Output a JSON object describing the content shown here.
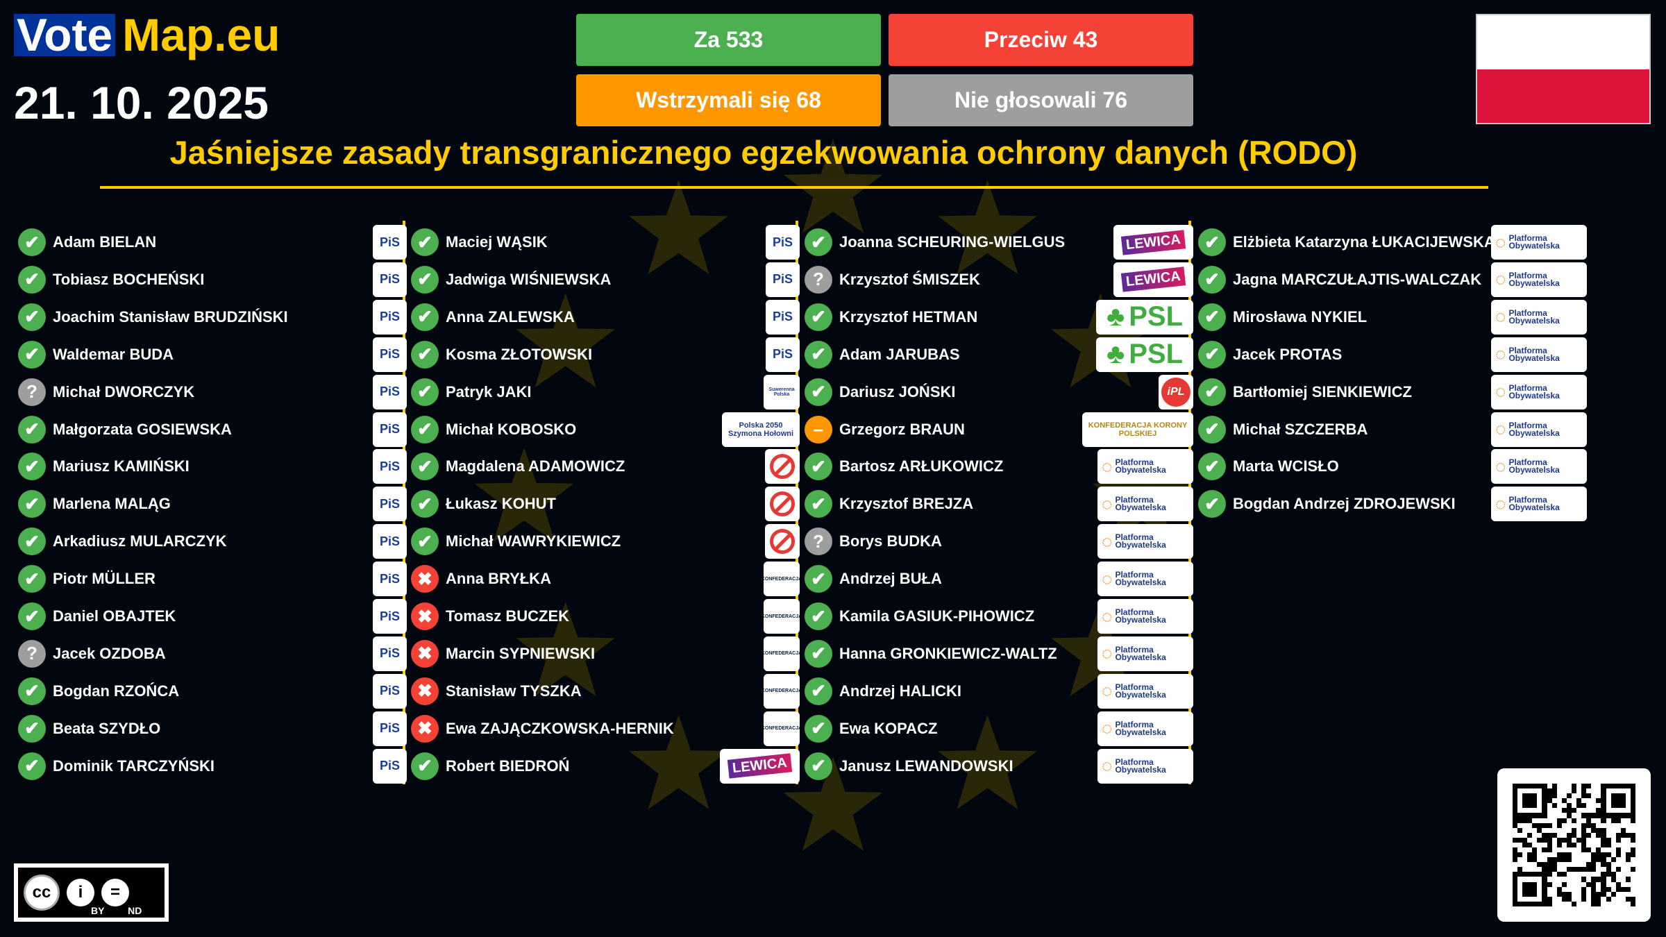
{
  "brand": {
    "vote": "Vote",
    "map": "Map.eu"
  },
  "date": "21. 10. 2025",
  "tally": {
    "for": "Za 533",
    "against": "Przeciw 43",
    "abstain": "Wstrzymali się 68",
    "absent": "Nie głosowali 76"
  },
  "title": "Jaśniejsze zasady transgranicznego egzekwowania ochrony danych (RODO)",
  "colors": {
    "for": "#4caf50",
    "against": "#f44336",
    "abstain": "#ff9800",
    "absent": "#9e9e9e",
    "accent": "#ffcc00",
    "background": "#02060f"
  },
  "vote_icons": {
    "for": "✔",
    "against": "✖",
    "abstain": "–",
    "absent": "?"
  },
  "parties": {
    "PIS": {
      "label": "PiS"
    },
    "LEW": {
      "label": "LEWICA"
    },
    "PSL": {
      "label": "PSL"
    },
    "PO": {
      "label": "Platforma Obywatelska"
    },
    "KON": {
      "label": "KONFEDERACJA"
    },
    "KKP": {
      "label": "KONFEDERACJA KORONY POLSKIEJ"
    },
    "P2050": {
      "label": "Polska 2050 Szymona Hołowni"
    },
    "IPL": {
      "label": "iPL"
    },
    "SP": {
      "label": "Suwerenna Polska"
    },
    "NI": {
      "label": "",
      "icon": "no-entry-icon"
    }
  },
  "columns": [
    [
      [
        "Adam BIELAN",
        "for",
        "PIS"
      ],
      [
        "Tobiasz BOCHEŃSKI",
        "for",
        "PIS"
      ],
      [
        "Joachim Stanisław BRUDZIŃSKI",
        "for",
        "PIS"
      ],
      [
        "Waldemar BUDA",
        "for",
        "PIS"
      ],
      [
        "Michał DWORCZYK",
        "absent",
        "PIS"
      ],
      [
        "Małgorzata GOSIEWSKA",
        "for",
        "PIS"
      ],
      [
        "Mariusz KAMIŃSKI",
        "for",
        "PIS"
      ],
      [
        "Marlena MALĄG",
        "for",
        "PIS"
      ],
      [
        "Arkadiusz MULARCZYK",
        "for",
        "PIS"
      ],
      [
        "Piotr MÜLLER",
        "for",
        "PIS"
      ],
      [
        "Daniel OBAJTEK",
        "for",
        "PIS"
      ],
      [
        "Jacek OZDOBA",
        "absent",
        "PIS"
      ],
      [
        "Bogdan RZOŃCA",
        "for",
        "PIS"
      ],
      [
        "Beata SZYDŁO",
        "for",
        "PIS"
      ],
      [
        "Dominik TARCZYŃSKI",
        "for",
        "PIS"
      ]
    ],
    [
      [
        "Maciej WĄSIK",
        "for",
        "PIS"
      ],
      [
        "Jadwiga WIŚNIEWSKA",
        "for",
        "PIS"
      ],
      [
        "Anna ZALEWSKA",
        "for",
        "PIS"
      ],
      [
        "Kosma ZŁOTOWSKI",
        "for",
        "PIS"
      ],
      [
        "Patryk JAKI",
        "for",
        "SP"
      ],
      [
        "Michał KOBOSKO",
        "for",
        "P2050"
      ],
      [
        "Magdalena ADAMOWICZ",
        "for",
        "NI"
      ],
      [
        "Łukasz KOHUT",
        "for",
        "NI"
      ],
      [
        "Michał WAWRYKIEWICZ",
        "for",
        "NI"
      ],
      [
        "Anna BRYŁKA",
        "against",
        "KON"
      ],
      [
        "Tomasz BUCZEK",
        "against",
        "KON"
      ],
      [
        "Marcin SYPNIEWSKI",
        "against",
        "KON"
      ],
      [
        "Stanisław TYSZKA",
        "against",
        "KON"
      ],
      [
        "Ewa ZAJĄCZKOWSKA-HERNIK",
        "against",
        "KON"
      ],
      [
        "Robert BIEDROŃ",
        "for",
        "LEW"
      ]
    ],
    [
      [
        "Joanna SCHEURING-WIELGUS",
        "for",
        "LEW"
      ],
      [
        "Krzysztof ŚMISZEK",
        "absent",
        "LEW"
      ],
      [
        "Krzysztof HETMAN",
        "for",
        "PSL"
      ],
      [
        "Adam JARUBAS",
        "for",
        "PSL"
      ],
      [
        "Dariusz JOŃSKI",
        "for",
        "IPL"
      ],
      [
        "Grzegorz BRAUN",
        "abstain",
        "KKP"
      ],
      [
        "Bartosz ARŁUKOWICZ",
        "for",
        "PO"
      ],
      [
        "Krzysztof BREJZA",
        "for",
        "PO"
      ],
      [
        "Borys BUDKA",
        "absent",
        "PO"
      ],
      [
        "Andrzej BUŁA",
        "for",
        "PO"
      ],
      [
        "Kamila GASIUK-PIHOWICZ",
        "for",
        "PO"
      ],
      [
        "Hanna GRONKIEWICZ-WALTZ",
        "for",
        "PO"
      ],
      [
        "Andrzej HALICKI",
        "for",
        "PO"
      ],
      [
        "Ewa KOPACZ",
        "for",
        "PO"
      ],
      [
        "Janusz LEWANDOWSKI",
        "for",
        "PO"
      ]
    ],
    [
      [
        "Elżbieta Katarzyna ŁUKACIJEWSKA",
        "for",
        "PO"
      ],
      [
        "Jagna MARCZUŁAJTIS-WALCZAK",
        "for",
        "PO"
      ],
      [
        "Mirosława NYKIEL",
        "for",
        "PO"
      ],
      [
        "Jacek PROTAS",
        "for",
        "PO"
      ],
      [
        "Bartłomiej SIENKIEWICZ",
        "for",
        "PO"
      ],
      [
        "Michał SZCZERBA",
        "for",
        "PO"
      ],
      [
        "Marta WCISŁO",
        "for",
        "PO"
      ],
      [
        "Bogdan Andrzej ZDROJEWSKI",
        "for",
        "PO"
      ]
    ]
  ],
  "license": {
    "cc": "cc",
    "by": "BY",
    "nd": "ND"
  }
}
